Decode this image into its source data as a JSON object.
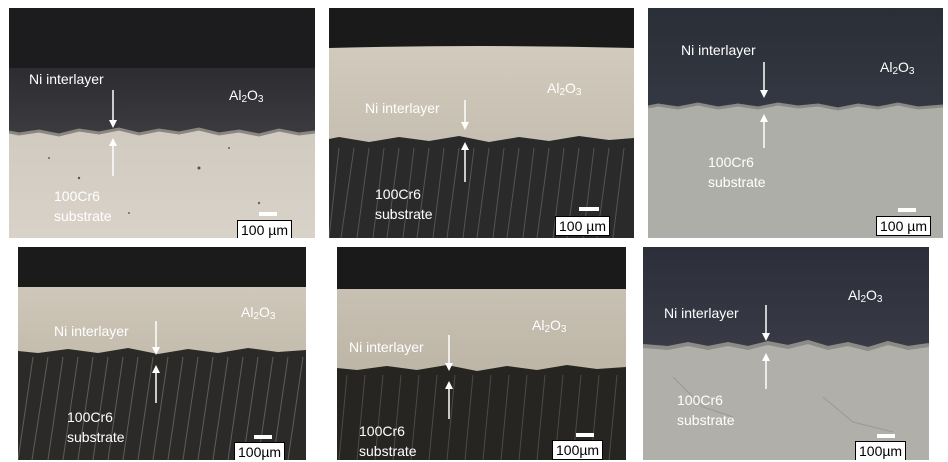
{
  "panels": [
    {
      "id": "a",
      "ni_label": "Ni interlayer",
      "oxide_prefix": "Al",
      "oxide_sub1": "2",
      "oxide_mid": "O",
      "oxide_sub2": "3",
      "substrate_line1": "100Cr6",
      "substrate_line2": "substrate",
      "scale_label": "100 µm"
    },
    {
      "id": "b",
      "ni_label": "Ni interlayer",
      "oxide_prefix": "Al",
      "oxide_sub1": "2",
      "oxide_mid": "O",
      "oxide_sub2": "3",
      "substrate_line1": "100Cr6",
      "substrate_line2": "substrate",
      "scale_label": "100 µm"
    },
    {
      "id": "c",
      "ni_label": "Ni interlayer",
      "oxide_prefix": "Al",
      "oxide_sub1": "2",
      "oxide_mid": "O",
      "oxide_sub2": "3",
      "substrate_line1": "100Cr6",
      "substrate_line2": "substrate",
      "scale_label": "100 µm"
    },
    {
      "id": "d",
      "ni_label": "Ni interlayer",
      "oxide_prefix": "Al",
      "oxide_sub1": "2",
      "oxide_mid": "O",
      "oxide_sub2": "3",
      "substrate_line1": "100Cr6",
      "substrate_line2": "substrate",
      "scale_label": "100µm"
    },
    {
      "id": "e",
      "ni_label": "Ni interlayer",
      "oxide_prefix": "Al",
      "oxide_sub1": "2",
      "oxide_mid": "O",
      "oxide_sub2": "3",
      "substrate_line1": "100Cr6",
      "substrate_line2": "substrate",
      "scale_label": "100µm"
    },
    {
      "id": "f",
      "ni_label": "Ni interlayer",
      "oxide_prefix": "Al",
      "oxide_sub1": "2",
      "oxide_mid": "O",
      "oxide_sub2": "3",
      "substrate_line1": "100Cr6",
      "substrate_line2": "substrate",
      "scale_label": "100µm"
    }
  ]
}
